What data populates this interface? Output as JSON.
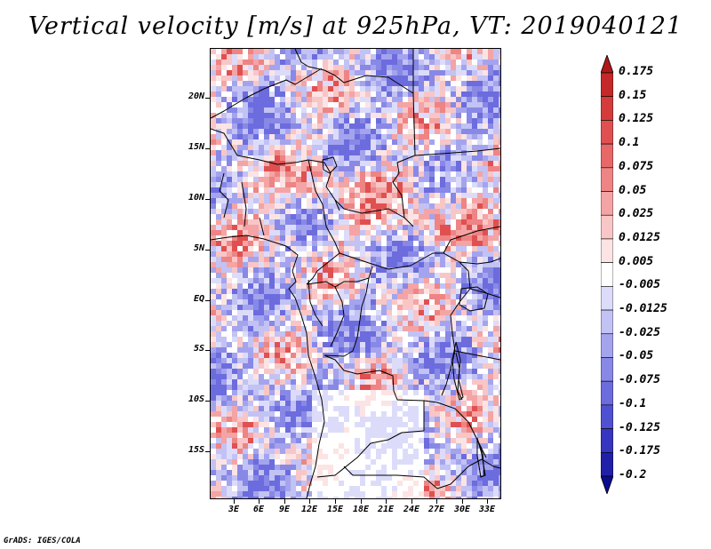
{
  "title": "Vertical velocity [m/s] at 925hPa, VT: 2019040121",
  "map": {
    "lat_labels": [
      "20N",
      "15N",
      "10N",
      "5N",
      "EQ",
      "5S",
      "10S",
      "15S"
    ],
    "lat_values": [
      20,
      15,
      10,
      5,
      0,
      -5,
      -10,
      -15
    ],
    "lon_labels": [
      "3E",
      "6E",
      "9E",
      "12E",
      "15E",
      "18E",
      "21E",
      "24E",
      "27E",
      "30E",
      "33E"
    ],
    "lon_values": [
      3,
      6,
      9,
      12,
      15,
      18,
      21,
      24,
      27,
      30,
      33
    ],
    "lat_range": [
      -20,
      25
    ],
    "lon_range": [
      0,
      34
    ]
  },
  "colorbar": {
    "labels": [
      "0.175",
      "0.15",
      "0.125",
      "0.1",
      "0.075",
      "0.05",
      "0.025",
      "0.0125",
      "0.005",
      "-0.005",
      "-0.0125",
      "-0.025",
      "-0.05",
      "-0.075",
      "-0.1",
      "-0.125",
      "-0.175",
      "-0.2"
    ],
    "colors": [
      "#b01818",
      "#c42828",
      "#d43c3c",
      "#e05050",
      "#e86868",
      "#ee8484",
      "#f4a4a4",
      "#f8c6c6",
      "#fce4e4",
      "#ffffff",
      "#dcdcfa",
      "#c2c2f4",
      "#a4a4ee",
      "#8888e6",
      "#6c6cde",
      "#5050d2",
      "#3636c0",
      "#2020a8",
      "#0c0c90"
    ]
  },
  "footer": "GrADS: IGES/COLA"
}
